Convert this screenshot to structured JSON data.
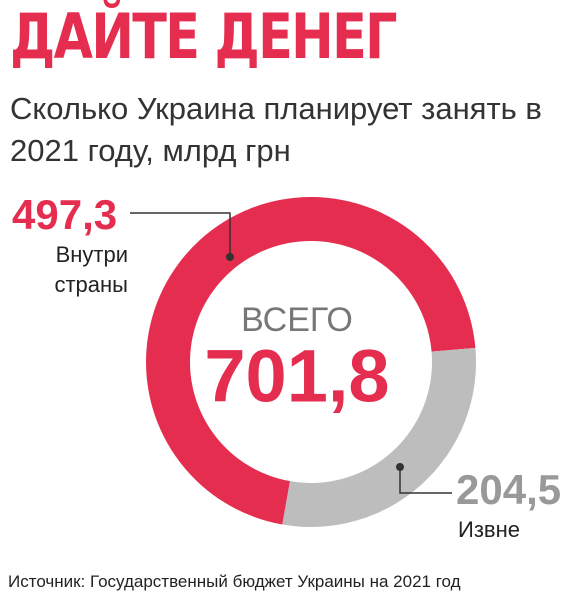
{
  "chart_data": {
    "type": "donut",
    "title": "ДАЙТЕ ДЕНЕГ",
    "subtitle": "Сколько Украина планирует занять в 2021 году, млрд грн",
    "categories": [
      "Внутри страны",
      "Извне"
    ],
    "values": [
      497.3,
      204.5
    ],
    "value_labels": [
      "497,3",
      "204,5"
    ],
    "colors": [
      "#e52d4f",
      "#bdbdbd"
    ],
    "center": {
      "label": "ВСЕГО",
      "value": 701.8,
      "value_label": "701,8"
    },
    "source": "Источник: Государственный бюджет Украины на 2021 год"
  }
}
